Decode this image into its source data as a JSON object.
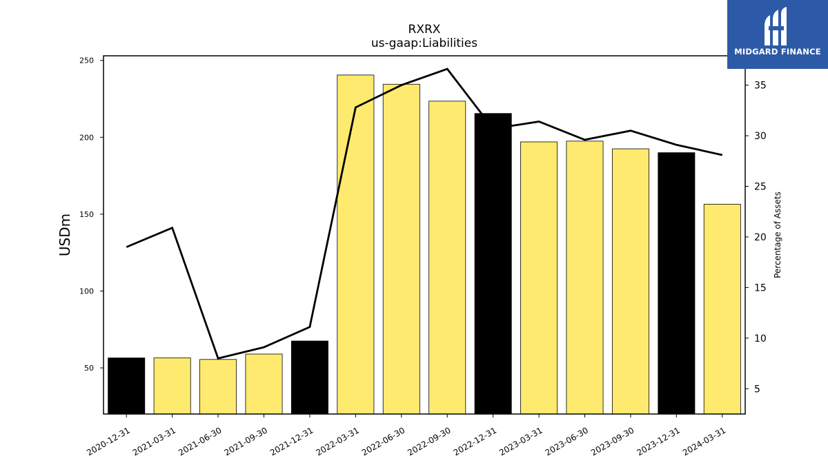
{
  "chart_data": {
    "type": "bar",
    "title": "RXRX",
    "subtitle": "us-gaap:Liabilities",
    "ylabel": "USDm",
    "y2label": "Percentage of Assets",
    "categories": [
      "2020-12-31",
      "2021-03-31",
      "2021-06-30",
      "2021-09-30",
      "2021-12-31",
      "2022-03-31",
      "2022-06-30",
      "2022-09-30",
      "2022-12-31",
      "2023-03-31",
      "2023-06-30",
      "2023-09-30",
      "2023-12-31",
      "2024-03-31"
    ],
    "bar_values": [
      56.5,
      56.5,
      55.5,
      59.0,
      67.5,
      240.5,
      234.5,
      223.5,
      215.5,
      197.0,
      197.5,
      192.5,
      190.0,
      156.5
    ],
    "bar_colors": [
      "#000000",
      "#fdea6f",
      "#fdea6f",
      "#fdea6f",
      "#000000",
      "#fdea6f",
      "#fdea6f",
      "#fdea6f",
      "#000000",
      "#fdea6f",
      "#fdea6f",
      "#fdea6f",
      "#000000",
      "#fdea6f"
    ],
    "line_values": [
      19.0,
      20.9,
      8.0,
      9.1,
      11.1,
      32.8,
      35.0,
      36.6,
      30.7,
      31.4,
      29.6,
      30.5,
      29.1,
      28.1
    ],
    "ylim": [
      20,
      253
    ],
    "y2lim": [
      2.5,
      37.9
    ],
    "yticks": [
      50,
      100,
      150,
      200,
      250
    ],
    "y2ticks": [
      5,
      10,
      15,
      20,
      25,
      30,
      35
    ],
    "grid": false,
    "legend": "none"
  },
  "logo": {
    "text": "MIDGARD FINANCE",
    "color": "#2d5aa6"
  }
}
